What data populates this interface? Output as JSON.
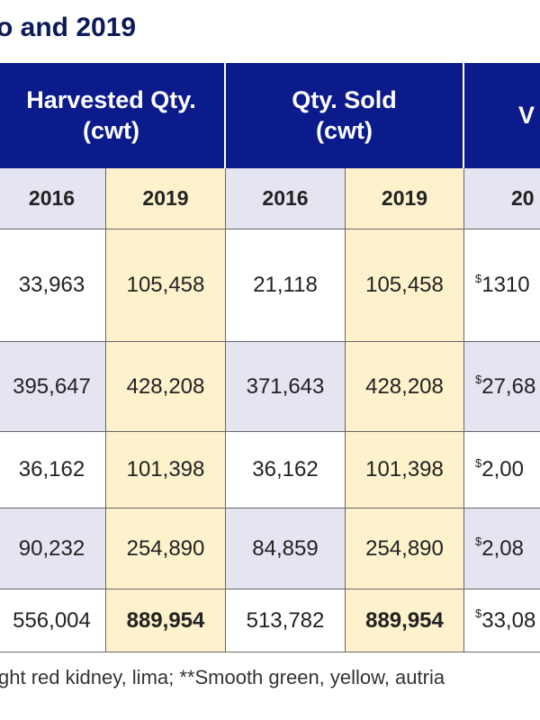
{
  "header": {
    "title": "o and 2019"
  },
  "table": {
    "groups": [
      "Harvested Qty.\n(cwt)",
      "Qty. Sold\n(cwt)",
      "V"
    ],
    "years": [
      "2016",
      "2019",
      "2016",
      "2019",
      "20"
    ],
    "rows": [
      [
        "33,963",
        "105,458",
        "21,118",
        "105,458",
        {
          "sup": "$",
          "text": "1310"
        }
      ],
      [
        "395,647",
        "428,208",
        "371,643",
        "428,208",
        {
          "sup": "$",
          "text": "27,68"
        }
      ],
      [
        "36,162",
        "101,398",
        "36,162",
        "101,398",
        {
          "sup": "$",
          "text": "2,00"
        }
      ],
      [
        "90,232",
        "254,890",
        "84,859",
        "254,890",
        {
          "sup": "$",
          "text": "2,08"
        }
      ],
      [
        "556,004",
        "889,954",
        "513,782",
        "889,954",
        {
          "sup": "$",
          "text": "33,08"
        }
      ]
    ]
  },
  "footer": {
    "note": "ght red kidney, lima;  **Smooth green, yellow, autria"
  }
}
